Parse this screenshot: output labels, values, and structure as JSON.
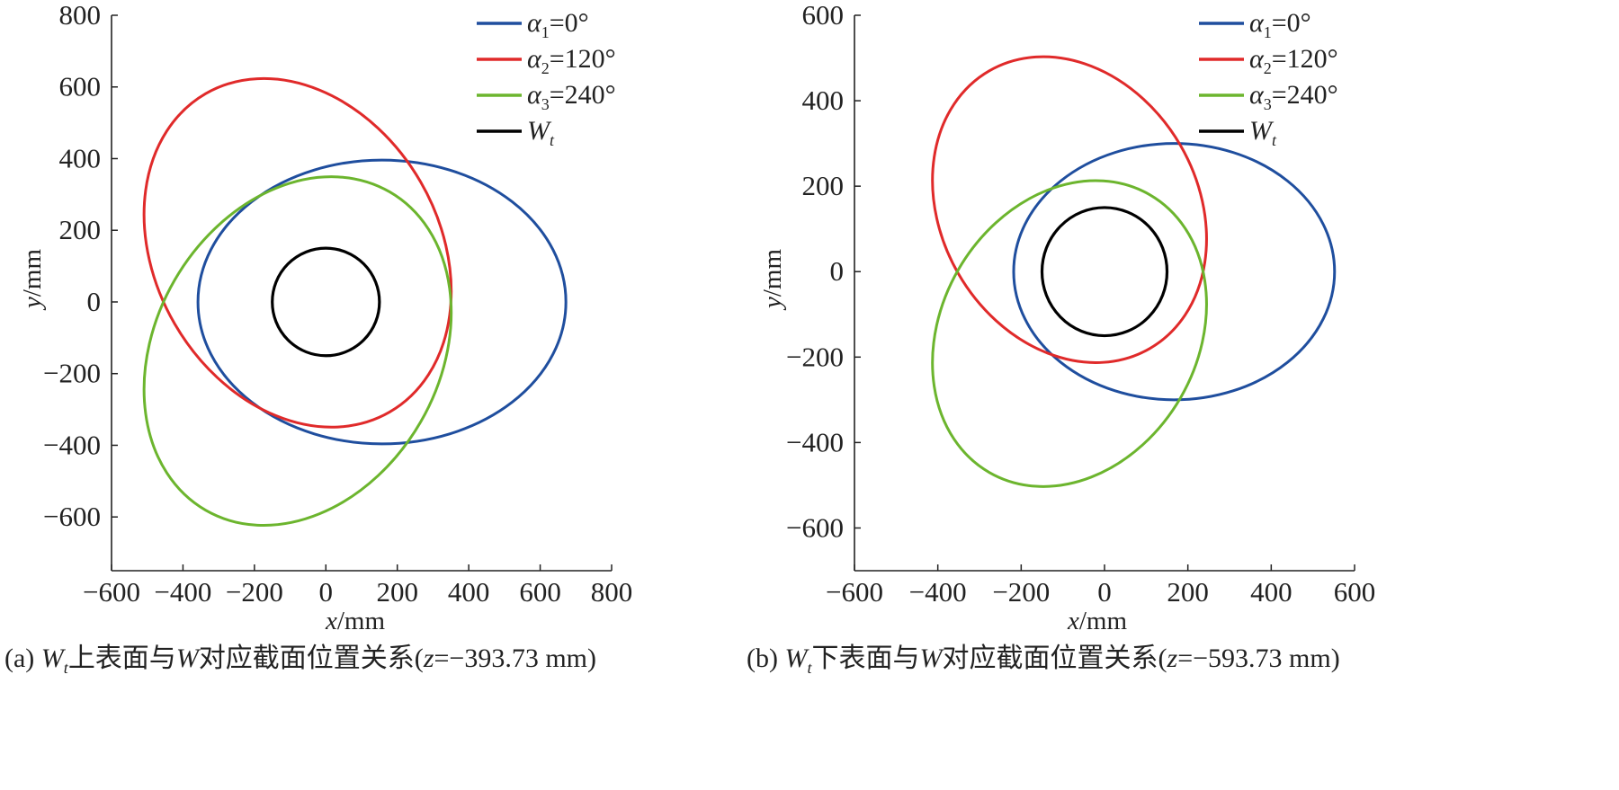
{
  "chart_data": [
    {
      "type": "line",
      "panel": "a",
      "xlabel_var": "x",
      "xlabel_unit": "/mm",
      "ylabel_var": "y",
      "ylabel_unit": "/mm",
      "xlim": [
        -600,
        800
      ],
      "ylim": [
        -750,
        800
      ],
      "xticks": [
        -600,
        -400,
        -200,
        0,
        200,
        400,
        600,
        800
      ],
      "yticks": [
        -600,
        -400,
        -200,
        0,
        200,
        400,
        600,
        800
      ],
      "xtick_labels": [
        "−600",
        "−400",
        "−200",
        "0",
        "200",
        "400",
        "600",
        "800"
      ],
      "ytick_labels": [
        "−600",
        "−400",
        "−200",
        "0",
        "200",
        "400",
        "600",
        "800"
      ],
      "legend_position": "top-right",
      "series": [
        {
          "name": "α",
          "sub": "1",
          "suffix": "=0°",
          "color": "#1f4e9e",
          "shape": "ellipse",
          "center": [
            157,
            0
          ],
          "semi_major": 515,
          "semi_minor": 396,
          "rotation_deg": 0
        },
        {
          "name": "α",
          "sub": "2",
          "suffix": "=120°",
          "color": "#e02a2a",
          "shape": "ellipse",
          "center": [
            -79,
            137
          ],
          "semi_major": 515,
          "semi_minor": 396,
          "rotation_deg": 120
        },
        {
          "name": "α",
          "sub": "3",
          "suffix": "=240°",
          "color": "#6cb52e",
          "shape": "ellipse",
          "center": [
            -79,
            -137
          ],
          "semi_major": 515,
          "semi_minor": 396,
          "rotation_deg": 240
        },
        {
          "name": "W",
          "sub": "t",
          "suffix": "",
          "color": "#000000",
          "shape": "ellipse",
          "center": [
            0,
            0
          ],
          "semi_major": 150,
          "semi_minor": 150,
          "rotation_deg": 0
        }
      ],
      "caption": {
        "prefix": "(a) ",
        "var": "W",
        "sub": "t",
        "text1": "上表面与",
        "var2": "W",
        "text2": "对应截面位置关系(",
        "zvar": "z",
        "text3": "=−393.73 mm)"
      }
    },
    {
      "type": "line",
      "panel": "b",
      "xlabel_var": "x",
      "xlabel_unit": "/mm",
      "ylabel_var": "y",
      "ylabel_unit": "/mm",
      "xlim": [
        -600,
        600
      ],
      "ylim": [
        -700,
        600
      ],
      "xticks": [
        -600,
        -400,
        -200,
        0,
        200,
        400,
        600
      ],
      "yticks": [
        -600,
        -400,
        -200,
        0,
        200,
        400,
        600
      ],
      "xtick_labels": [
        "−600",
        "−400",
        "−200",
        "0",
        "200",
        "400",
        "600"
      ],
      "ytick_labels": [
        "−600",
        "−400",
        "−200",
        "0",
        "200",
        "400",
        "600"
      ],
      "legend_position": "top-right",
      "series": [
        {
          "name": "α",
          "sub": "1",
          "suffix": "=0°",
          "color": "#1f4e9e",
          "shape": "ellipse",
          "center": [
            167,
            0
          ],
          "semi_major": 385,
          "semi_minor": 300,
          "rotation_deg": 0
        },
        {
          "name": "α",
          "sub": "2",
          "suffix": "=120°",
          "color": "#e02a2a",
          "shape": "ellipse",
          "center": [
            -84,
            145
          ],
          "semi_major": 385,
          "semi_minor": 300,
          "rotation_deg": 120
        },
        {
          "name": "α",
          "sub": "3",
          "suffix": "=240°",
          "color": "#6cb52e",
          "shape": "ellipse",
          "center": [
            -84,
            -145
          ],
          "semi_major": 385,
          "semi_minor": 300,
          "rotation_deg": 240
        },
        {
          "name": "W",
          "sub": "t",
          "suffix": "",
          "color": "#000000",
          "shape": "ellipse",
          "center": [
            0,
            0
          ],
          "semi_major": 150,
          "semi_minor": 150,
          "rotation_deg": 0
        }
      ],
      "caption": {
        "prefix": "(b) ",
        "var": "W",
        "sub": "t",
        "text1": "下表面与",
        "var2": "W",
        "text2": "对应截面位置关系(",
        "zvar": "z",
        "text3": "=−593.73 mm)"
      }
    }
  ]
}
